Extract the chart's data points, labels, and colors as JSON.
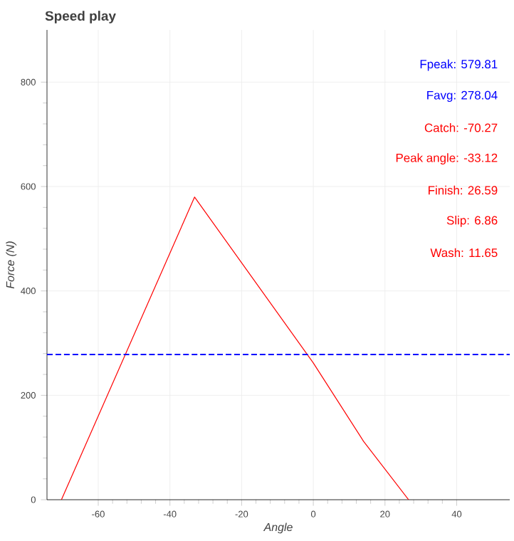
{
  "chart_data": {
    "type": "line",
    "title": "Speed play",
    "xlabel": "Angle",
    "ylabel": "Force (N)",
    "x": [
      -70.27,
      -33.12,
      0,
      14,
      26.59
    ],
    "series": [
      {
        "color": "#ff0000",
        "values": [
          0,
          579.81,
          262,
          112,
          0
        ]
      }
    ],
    "xlim": [
      -74.3,
      54.8
    ],
    "ylim": [
      0,
      900
    ],
    "xticks": [
      -60,
      -40,
      -20,
      0,
      20,
      40
    ],
    "yticks": [
      0,
      200,
      400,
      600,
      800
    ],
    "ref_lines": [
      {
        "axis": "y",
        "value": 278.04,
        "color": "#0000ff",
        "line_style": "dashed"
      }
    ],
    "annotations": [
      "Fpeak: 579.81",
      "Favg: 278.04",
      "Catch: -70.27",
      "Peak angle: -33.12",
      "Finish: 26.59",
      "Slip: 6.86",
      "Wash: 11.65"
    ],
    "grid": true,
    "marker": "none",
    "line_style": "solid"
  }
}
